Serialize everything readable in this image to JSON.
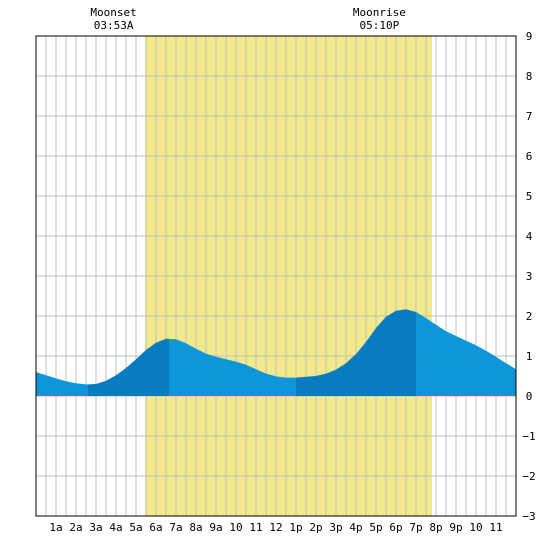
{
  "chart_data": {
    "type": "area",
    "title": "",
    "xlabel": "",
    "ylabel": "",
    "x_unit": "hour of day",
    "xlim": [
      0,
      24
    ],
    "ylim": [
      -3,
      9
    ],
    "y_ticks": [
      -3,
      -2,
      -1,
      0,
      1,
      2,
      3,
      4,
      5,
      6,
      7,
      8,
      9
    ],
    "x_ticks": [
      {
        "hour": 1,
        "label": "1a"
      },
      {
        "hour": 2,
        "label": "2a"
      },
      {
        "hour": 3,
        "label": "3a"
      },
      {
        "hour": 4,
        "label": "4a"
      },
      {
        "hour": 5,
        "label": "5a"
      },
      {
        "hour": 6,
        "label": "6a"
      },
      {
        "hour": 7,
        "label": "7a"
      },
      {
        "hour": 8,
        "label": "8a"
      },
      {
        "hour": 9,
        "label": "9a"
      },
      {
        "hour": 10,
        "label": "10"
      },
      {
        "hour": 11,
        "label": "11"
      },
      {
        "hour": 12,
        "label": "12"
      },
      {
        "hour": 13,
        "label": "1p"
      },
      {
        "hour": 14,
        "label": "2p"
      },
      {
        "hour": 15,
        "label": "3p"
      },
      {
        "hour": 16,
        "label": "4p"
      },
      {
        "hour": 17,
        "label": "5p"
      },
      {
        "hour": 18,
        "label": "6p"
      },
      {
        "hour": 19,
        "label": "7p"
      },
      {
        "hour": 20,
        "label": "8p"
      },
      {
        "hour": 21,
        "label": "9p"
      },
      {
        "hour": 22,
        "label": "10"
      },
      {
        "hour": 23,
        "label": "11"
      }
    ],
    "grid": true,
    "daylight": {
      "start_hour": 5.45,
      "end_hour": 19.8,
      "color": "#f2ea8a"
    },
    "moon_events": [
      {
        "label": "Moonset",
        "time": "03:53A",
        "hour": 3.88
      },
      {
        "label": "Moonrise",
        "time": "05:10P",
        "hour": 17.17
      }
    ],
    "series": [
      {
        "x": [
          0,
          0.5,
          1,
          1.5,
          2,
          2.5,
          3,
          3.5,
          4,
          4.5,
          5,
          5.5,
          6,
          6.5,
          7,
          7.5,
          8,
          8.5,
          9,
          9.5,
          10,
          10.5,
          11,
          11.5,
          12,
          12.5,
          13,
          13.5,
          14,
          14.5,
          15,
          15.5,
          16,
          16.5,
          17,
          17.5,
          18,
          18.5,
          19,
          19.5,
          20,
          20.5,
          21,
          21.5,
          22,
          22.5,
          23,
          23.5,
          24
        ],
        "values": [
          0.6,
          0.52,
          0.44,
          0.37,
          0.32,
          0.29,
          0.3,
          0.38,
          0.52,
          0.7,
          0.92,
          1.15,
          1.33,
          1.43,
          1.42,
          1.32,
          1.18,
          1.06,
          0.98,
          0.92,
          0.86,
          0.78,
          0.67,
          0.56,
          0.49,
          0.46,
          0.46,
          0.48,
          0.5,
          0.56,
          0.66,
          0.82,
          1.05,
          1.35,
          1.7,
          1.98,
          2.13,
          2.17,
          2.1,
          1.95,
          1.78,
          1.62,
          1.5,
          1.38,
          1.27,
          1.13,
          0.98,
          0.82,
          0.67
        ]
      }
    ],
    "band_boundaries_hours": [
      2.6,
      6.65,
      13.0,
      19.0
    ],
    "colors": {
      "light": "#0e96d8",
      "dark": "#0b7bbf",
      "grid": "#c0c0c0",
      "frame": "#000000"
    }
  }
}
